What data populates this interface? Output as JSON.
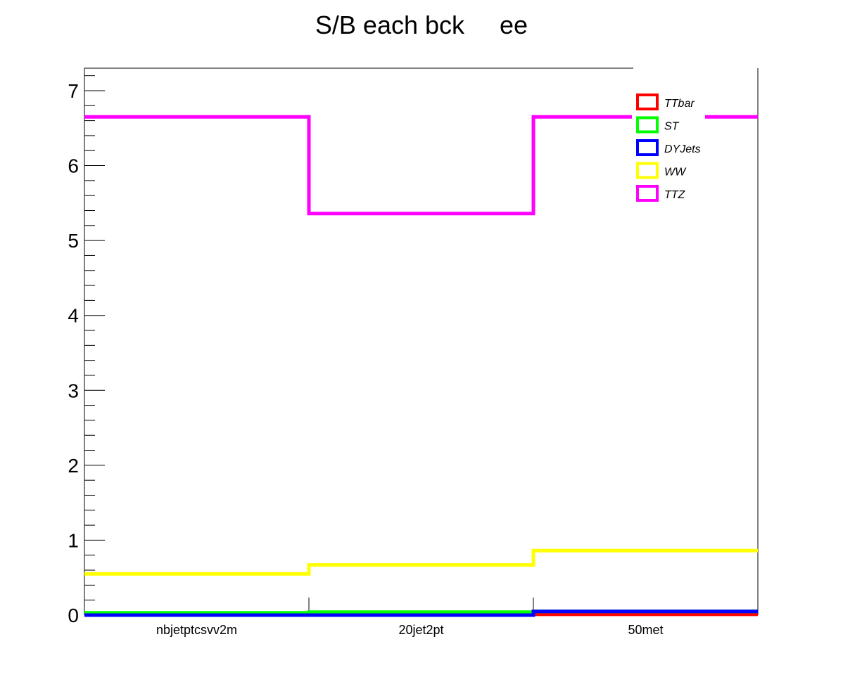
{
  "chart_data": {
    "type": "line",
    "title": "S/B each bck     ee",
    "xlabel": "",
    "ylabel": "",
    "categories": [
      "nbjetptcsvv2m",
      "20jet2pt",
      "50met"
    ],
    "ylim": [
      0,
      7.3
    ],
    "yticks": [
      0,
      1,
      2,
      3,
      4,
      5,
      6,
      7
    ],
    "grid": false,
    "legend_position": "top-right",
    "series": [
      {
        "name": "TTbar",
        "color": "#ff0000",
        "values": [
          0.01,
          0.01,
          0.01
        ]
      },
      {
        "name": "ST",
        "color": "#00ff00",
        "values": [
          0.03,
          0.04,
          0.05
        ]
      },
      {
        "name": "DYJets",
        "color": "#0000ff",
        "values": [
          0.0,
          0.0,
          0.05
        ]
      },
      {
        "name": "WW",
        "color": "#ffff00",
        "values": [
          0.55,
          0.67,
          0.86
        ]
      },
      {
        "name": "TTZ",
        "color": "#ff00ff",
        "values": [
          6.65,
          5.36,
          6.65
        ]
      }
    ]
  }
}
